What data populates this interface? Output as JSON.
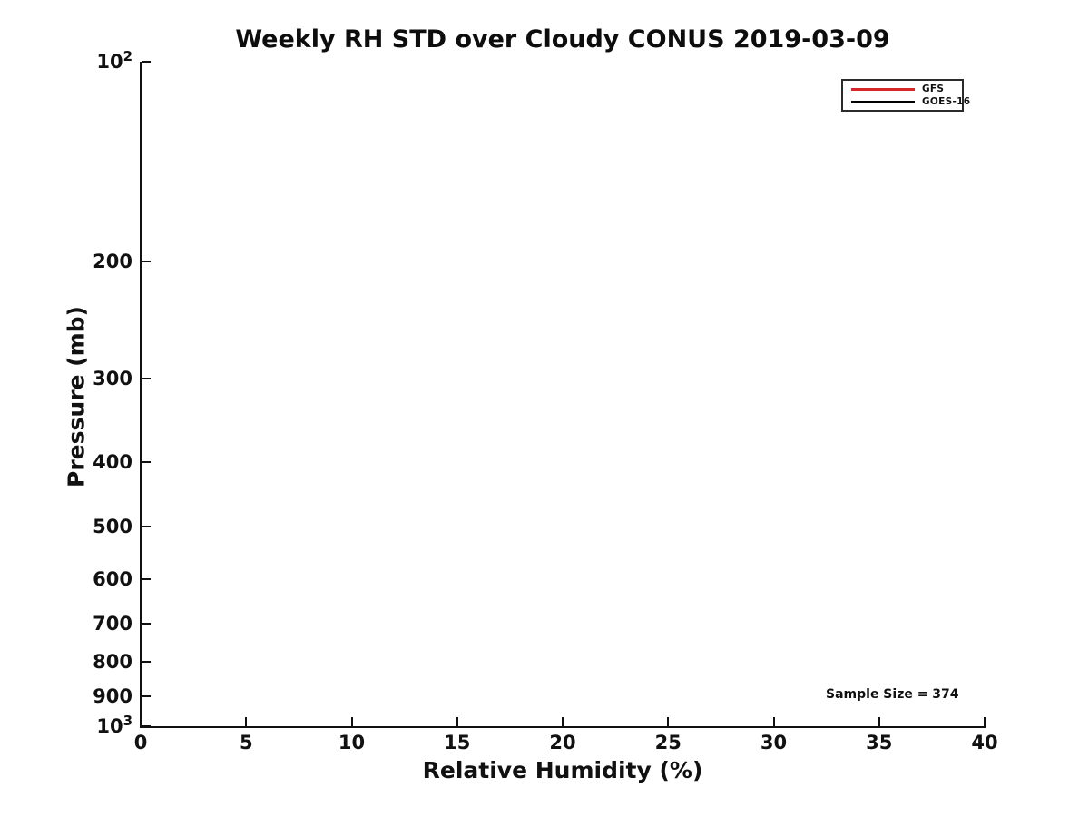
{
  "chart_data": {
    "type": "line",
    "title": "Weekly RH STD over Cloudy CONUS 2019-03-09",
    "xlabel": "Relative Humidity (%)",
    "ylabel": "Pressure (mb)",
    "xlim": [
      0,
      40
    ],
    "xticks": [
      0,
      5,
      10,
      15,
      20,
      25,
      30,
      35,
      40
    ],
    "yscale": "log",
    "y_axis_reversed": true,
    "ylim_mb": [
      100,
      1000
    ],
    "yticks": [
      {
        "value": 100,
        "base": "10",
        "exponent": "2"
      },
      {
        "value": 200,
        "label": "200"
      },
      {
        "value": 300,
        "label": "300"
      },
      {
        "value": 400,
        "label": "400"
      },
      {
        "value": 500,
        "label": "500"
      },
      {
        "value": 600,
        "label": "600"
      },
      {
        "value": 700,
        "label": "700"
      },
      {
        "value": 800,
        "label": "800"
      },
      {
        "value": 900,
        "label": "900"
      },
      {
        "value": 1000,
        "base": "10",
        "exponent": "3"
      }
    ],
    "grid": false,
    "legend_position": "upper-right",
    "series": [
      {
        "name": "GFS",
        "color": "#d62728",
        "x": [],
        "y": []
      },
      {
        "name": "GOES-16",
        "color": "#000000",
        "x": [],
        "y": []
      }
    ],
    "annotations": [
      {
        "text": "Sample Size = 374",
        "x": 32.5,
        "y_mb": 900
      }
    ]
  },
  "colors": {
    "background": "#ffffff",
    "axis": "#111111",
    "text": "#111111",
    "legend_border": "#2b2b2b"
  }
}
